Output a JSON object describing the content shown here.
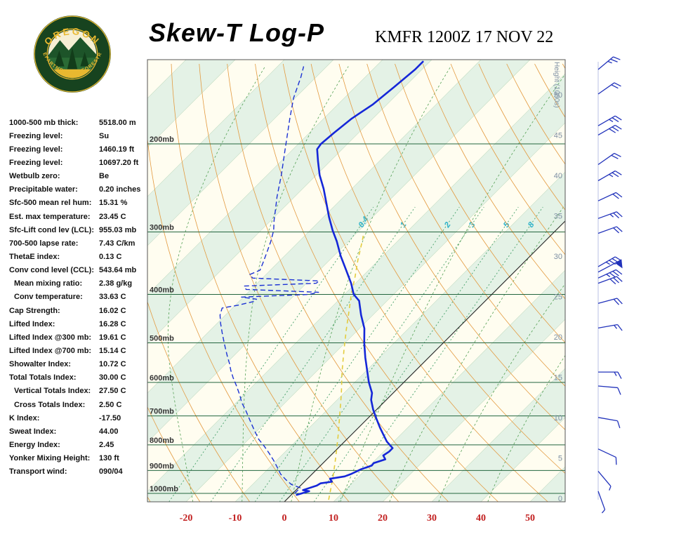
{
  "header": {
    "title": "Skew-T Log-P",
    "station": "KMFR 1200Z 17 NOV 22"
  },
  "logo": {
    "top_text": "OREGON",
    "bottom_text": "DEPARTMENT OF FORESTRY"
  },
  "stats": [
    {
      "label": "1000-500 mb thick:",
      "value": "5518.00 m",
      "indent": false
    },
    {
      "label": "Freezing level:",
      "value": "Su",
      "indent": false
    },
    {
      "label": "Freezing level:",
      "value": "1460.19 ft",
      "indent": false
    },
    {
      "label": "Freezing level:",
      "value": "10697.20 ft",
      "indent": false
    },
    {
      "label": "Wetbulb zero:",
      "value": "Be",
      "indent": false
    },
    {
      "label": "Precipitable water:",
      "value": "0.20 inches",
      "indent": false
    },
    {
      "label": "Sfc-500 mean rel hum:",
      "value": "15.31 %",
      "indent": false
    },
    {
      "label": "Est. max temperature:",
      "value": "23.45 C",
      "indent": false
    },
    {
      "label": "Sfc-Lift cond lev (LCL):",
      "value": "955.03 mb",
      "indent": false
    },
    {
      "label": "700-500 lapse rate:",
      "value": "7.43 C/km",
      "indent": false
    },
    {
      "label": "ThetaE index:",
      "value": "0.13 C",
      "indent": false
    },
    {
      "label": "Conv cond level (CCL):",
      "value": "543.64 mb",
      "indent": false
    },
    {
      "label": "Mean mixing ratio:",
      "value": "2.38 g/kg",
      "indent": true
    },
    {
      "label": "Conv temperature:",
      "value": "33.63 C",
      "indent": true
    },
    {
      "label": "Cap Strength:",
      "value": "16.02 C",
      "indent": false
    },
    {
      "label": "Lifted Index:",
      "value": "16.28 C",
      "indent": false
    },
    {
      "label": "Lifted Index @300 mb:",
      "value": "19.61 C",
      "indent": false
    },
    {
      "label": "Lifted Index @700 mb:",
      "value": "15.14 C",
      "indent": false
    },
    {
      "label": "Showalter Index:",
      "value": "10.72 C",
      "indent": false
    },
    {
      "label": "Total Totals Index:",
      "value": "30.00 C",
      "indent": false
    },
    {
      "label": "Vertical Totals Index:",
      "value": "27.50 C",
      "indent": true
    },
    {
      "label": "Cross Totals Index:",
      "value": "2.50 C",
      "indent": true
    },
    {
      "label": "K Index:",
      "value": "-17.50",
      "indent": false
    },
    {
      "label": "Sweat Index:",
      "value": "44.00",
      "indent": false
    },
    {
      "label": "Energy Index:",
      "value": "2.45",
      "indent": false
    },
    {
      "label": "Yonker Mixing Height:",
      "value": "130 ft",
      "indent": false
    },
    {
      "label": "Transport wind:",
      "value": "090/04",
      "indent": false
    }
  ],
  "chart_data": {
    "type": "skew-t",
    "title": "Skew-T Log-P",
    "station": "KMFR 1200Z 17 NOV 22",
    "pressure_axis_mb": [
      200,
      300,
      400,
      500,
      600,
      700,
      800,
      900,
      1000
    ],
    "pressure_label_suffix": "mb",
    "temp_axis_c": [
      -20,
      -10,
      0,
      10,
      20,
      30,
      40,
      50
    ],
    "height_axis_title": "Height (1000s)",
    "height_labels_kft": [
      0,
      5,
      10,
      15,
      20,
      25,
      30,
      35,
      40,
      45,
      50
    ],
    "dry_adiabats_theta_c": [
      -60,
      -50,
      -40,
      -30,
      -20,
      -10,
      0,
      10,
      20,
      30,
      40,
      50,
      60,
      70,
      80,
      90,
      100,
      110,
      120,
      130,
      140,
      150,
      160
    ],
    "moist_adiabats_tw_c": [
      -20,
      -10,
      0,
      10,
      20,
      30,
      40
    ],
    "mixing_ratio_lines": [
      {
        "label": "0.4",
        "td_1000mb_c": -24.0
      },
      {
        "label": "1",
        "td_1000mb_c": -15.5
      },
      {
        "label": "2",
        "td_1000mb_c": -6.5
      },
      {
        "label": "3",
        "td_1000mb_c": -1.5
      },
      {
        "label": "5",
        "td_1000mb_c": 5.5
      },
      {
        "label": "8",
        "td_1000mb_c": 10.5
      }
    ],
    "temperature_profile_p_t": [
      [
        1007,
        1.1
      ],
      [
        990,
        2.9
      ],
      [
        985,
        1.4
      ],
      [
        965,
        3.3
      ],
      [
        955,
        3.6
      ],
      [
        948,
        5.6
      ],
      [
        935,
        4.6
      ],
      [
        925,
        7.1
      ],
      [
        915,
        7.9
      ],
      [
        895,
        9.0
      ],
      [
        880,
        10.4
      ],
      [
        870,
        10.3
      ],
      [
        855,
        11.9
      ],
      [
        840,
        10.7
      ],
      [
        825,
        11.1
      ],
      [
        812,
        11.1
      ],
      [
        788,
        8.6
      ],
      [
        762,
        6.4
      ],
      [
        738,
        4.3
      ],
      [
        710,
        1.9
      ],
      [
        680,
        -0.7
      ],
      [
        650,
        -3.1
      ],
      [
        630,
        -4.3
      ],
      [
        600,
        -7.1
      ],
      [
        570,
        -9.7
      ],
      [
        535,
        -12.9
      ],
      [
        500,
        -16.1
      ],
      [
        468,
        -19.0
      ],
      [
        440,
        -22.4
      ],
      [
        412,
        -25.7
      ],
      [
        400,
        -28.1
      ],
      [
        380,
        -30.9
      ],
      [
        357,
        -34.7
      ],
      [
        335,
        -38.6
      ],
      [
        313,
        -42.4
      ],
      [
        298,
        -45.4
      ],
      [
        280,
        -48.9
      ],
      [
        262,
        -52.4
      ],
      [
        246,
        -55.7
      ],
      [
        231,
        -59.3
      ],
      [
        217,
        -62.4
      ],
      [
        205,
        -65.1
      ],
      [
        200,
        -65.4
      ],
      [
        190,
        -65.0
      ],
      [
        178,
        -64.3
      ],
      [
        167,
        -62.9
      ],
      [
        154,
        -62.1
      ],
      [
        142,
        -61.4
      ],
      [
        137,
        -61.4
      ]
    ],
    "dewpoint_profile_p_t": [
      [
        1000,
        0.4
      ],
      [
        975,
        0.4
      ],
      [
        960,
        -2.1
      ],
      [
        940,
        -4.1
      ],
      [
        915,
        -6.4
      ],
      [
        885,
        -8.6
      ],
      [
        858,
        -10.7
      ],
      [
        830,
        -13.1
      ],
      [
        805,
        -15.4
      ],
      [
        780,
        -17.9
      ],
      [
        752,
        -20.3
      ],
      [
        728,
        -22.4
      ],
      [
        703,
        -24.6
      ],
      [
        680,
        -26.7
      ],
      [
        658,
        -28.9
      ],
      [
        637,
        -30.7
      ],
      [
        610,
        -33.3
      ],
      [
        587,
        -35.7
      ],
      [
        568,
        -37.6
      ],
      [
        550,
        -39.3
      ],
      [
        533,
        -41.1
      ],
      [
        516,
        -42.9
      ],
      [
        500,
        -44.6
      ],
      [
        477,
        -47.1
      ],
      [
        457,
        -49.3
      ],
      [
        440,
        -51.1
      ],
      [
        426,
        -52.1
      ],
      [
        420,
        -49.3
      ],
      [
        413,
        -46.9
      ],
      [
        409,
        -46.9
      ],
      [
        405,
        -50.4
      ],
      [
        400,
        -37.1
      ],
      [
        396,
        -35.7
      ],
      [
        391,
        -51.0
      ],
      [
        385,
        -52.1
      ],
      [
        380,
        -38.0
      ],
      [
        376,
        -37.9
      ],
      [
        371,
        -52.0
      ],
      [
        365,
        -53.3
      ],
      [
        358,
        -52.1
      ],
      [
        347,
        -52.9
      ],
      [
        330,
        -54.3
      ],
      [
        314,
        -55.7
      ],
      [
        298,
        -57.4
      ],
      [
        285,
        -59.3
      ],
      [
        272,
        -61.1
      ],
      [
        255,
        -63.6
      ],
      [
        231,
        -67.1
      ],
      [
        210,
        -70.7
      ],
      [
        197,
        -73.1
      ],
      [
        178,
        -76.9
      ],
      [
        162,
        -80.3
      ],
      [
        147,
        -83.1
      ],
      [
        140,
        -84.7
      ]
    ],
    "parcel_path_p_t": [
      [
        1030,
        8.6
      ],
      [
        931,
        5.0
      ],
      [
        847,
        1.4
      ],
      [
        769,
        -2.4
      ],
      [
        697,
        -6.4
      ],
      [
        632,
        -10.4
      ],
      [
        573,
        -14.6
      ],
      [
        519,
        -18.6
      ],
      [
        471,
        -22.4
      ],
      [
        427,
        -26.1
      ],
      [
        400,
        -28.6
      ],
      [
        369,
        -31.4
      ],
      [
        341,
        -34.3
      ],
      [
        314,
        -37.1
      ],
      [
        301,
        -38.6
      ]
    ],
    "wind_barbs": [
      {
        "p_mb": 142,
        "dir_deg": 50,
        "speed_kt": 25
      },
      {
        "p_mb": 159,
        "dir_deg": 55,
        "speed_kt": 20
      },
      {
        "p_mb": 184,
        "dir_deg": 60,
        "speed_kt": 25
      },
      {
        "p_mb": 192,
        "dir_deg": 60,
        "speed_kt": 30
      },
      {
        "p_mb": 220,
        "dir_deg": 55,
        "speed_kt": 20
      },
      {
        "p_mb": 237,
        "dir_deg": 60,
        "speed_kt": 25
      },
      {
        "p_mb": 260,
        "dir_deg": 65,
        "speed_kt": 20
      },
      {
        "p_mb": 282,
        "dir_deg": 70,
        "speed_kt": 25
      },
      {
        "p_mb": 302,
        "dir_deg": 70,
        "speed_kt": 20
      },
      {
        "p_mb": 352,
        "dir_deg": 60,
        "speed_kt": 35
      },
      {
        "p_mb": 361,
        "dir_deg": 62,
        "speed_kt": 50
      },
      {
        "p_mb": 371,
        "dir_deg": 65,
        "speed_kt": 35
      },
      {
        "p_mb": 380,
        "dir_deg": 70,
        "speed_kt": 30
      },
      {
        "p_mb": 417,
        "dir_deg": 75,
        "speed_kt": 20
      },
      {
        "p_mb": 467,
        "dir_deg": 80,
        "speed_kt": 15
      },
      {
        "p_mb": 572,
        "dir_deg": 90,
        "speed_kt": 15
      },
      {
        "p_mb": 610,
        "dir_deg": 95,
        "speed_kt": 10
      },
      {
        "p_mb": 705,
        "dir_deg": 100,
        "speed_kt": 10
      },
      {
        "p_mb": 815,
        "dir_deg": 115,
        "speed_kt": 10
      },
      {
        "p_mb": 903,
        "dir_deg": 140,
        "speed_kt": 5
      },
      {
        "p_mb": 990,
        "dir_deg": 160,
        "speed_kt": 5
      }
    ],
    "colors": {
      "band_green": "#e4f2e6",
      "band_cream": "#fffdf0",
      "isotherm_minor": "#c2dcc2",
      "dry_adiabat": "#e39a40",
      "moist_adiabat": "#55a055",
      "mixing_line": "#46a06a",
      "mixing_label": "#2eb2c9",
      "isobar": "#23663f",
      "pressure_label": "#333333",
      "temperature_trace": "#1527d8",
      "dewpoint_trace": "#1c32d4",
      "parcel_trace": "#e3cc3f",
      "zero_isotherm": "#222222",
      "temp_axis_label": "#c22020",
      "height_axis_label": "#7d8fa3",
      "wind_barb": "#2233bb",
      "frame": "#555555",
      "logo_green": "#17431f",
      "logo_gold": "#e8b830"
    },
    "layout_hints": {
      "pressure_scale": "log",
      "skew_deg": 45,
      "grid": true
    }
  }
}
